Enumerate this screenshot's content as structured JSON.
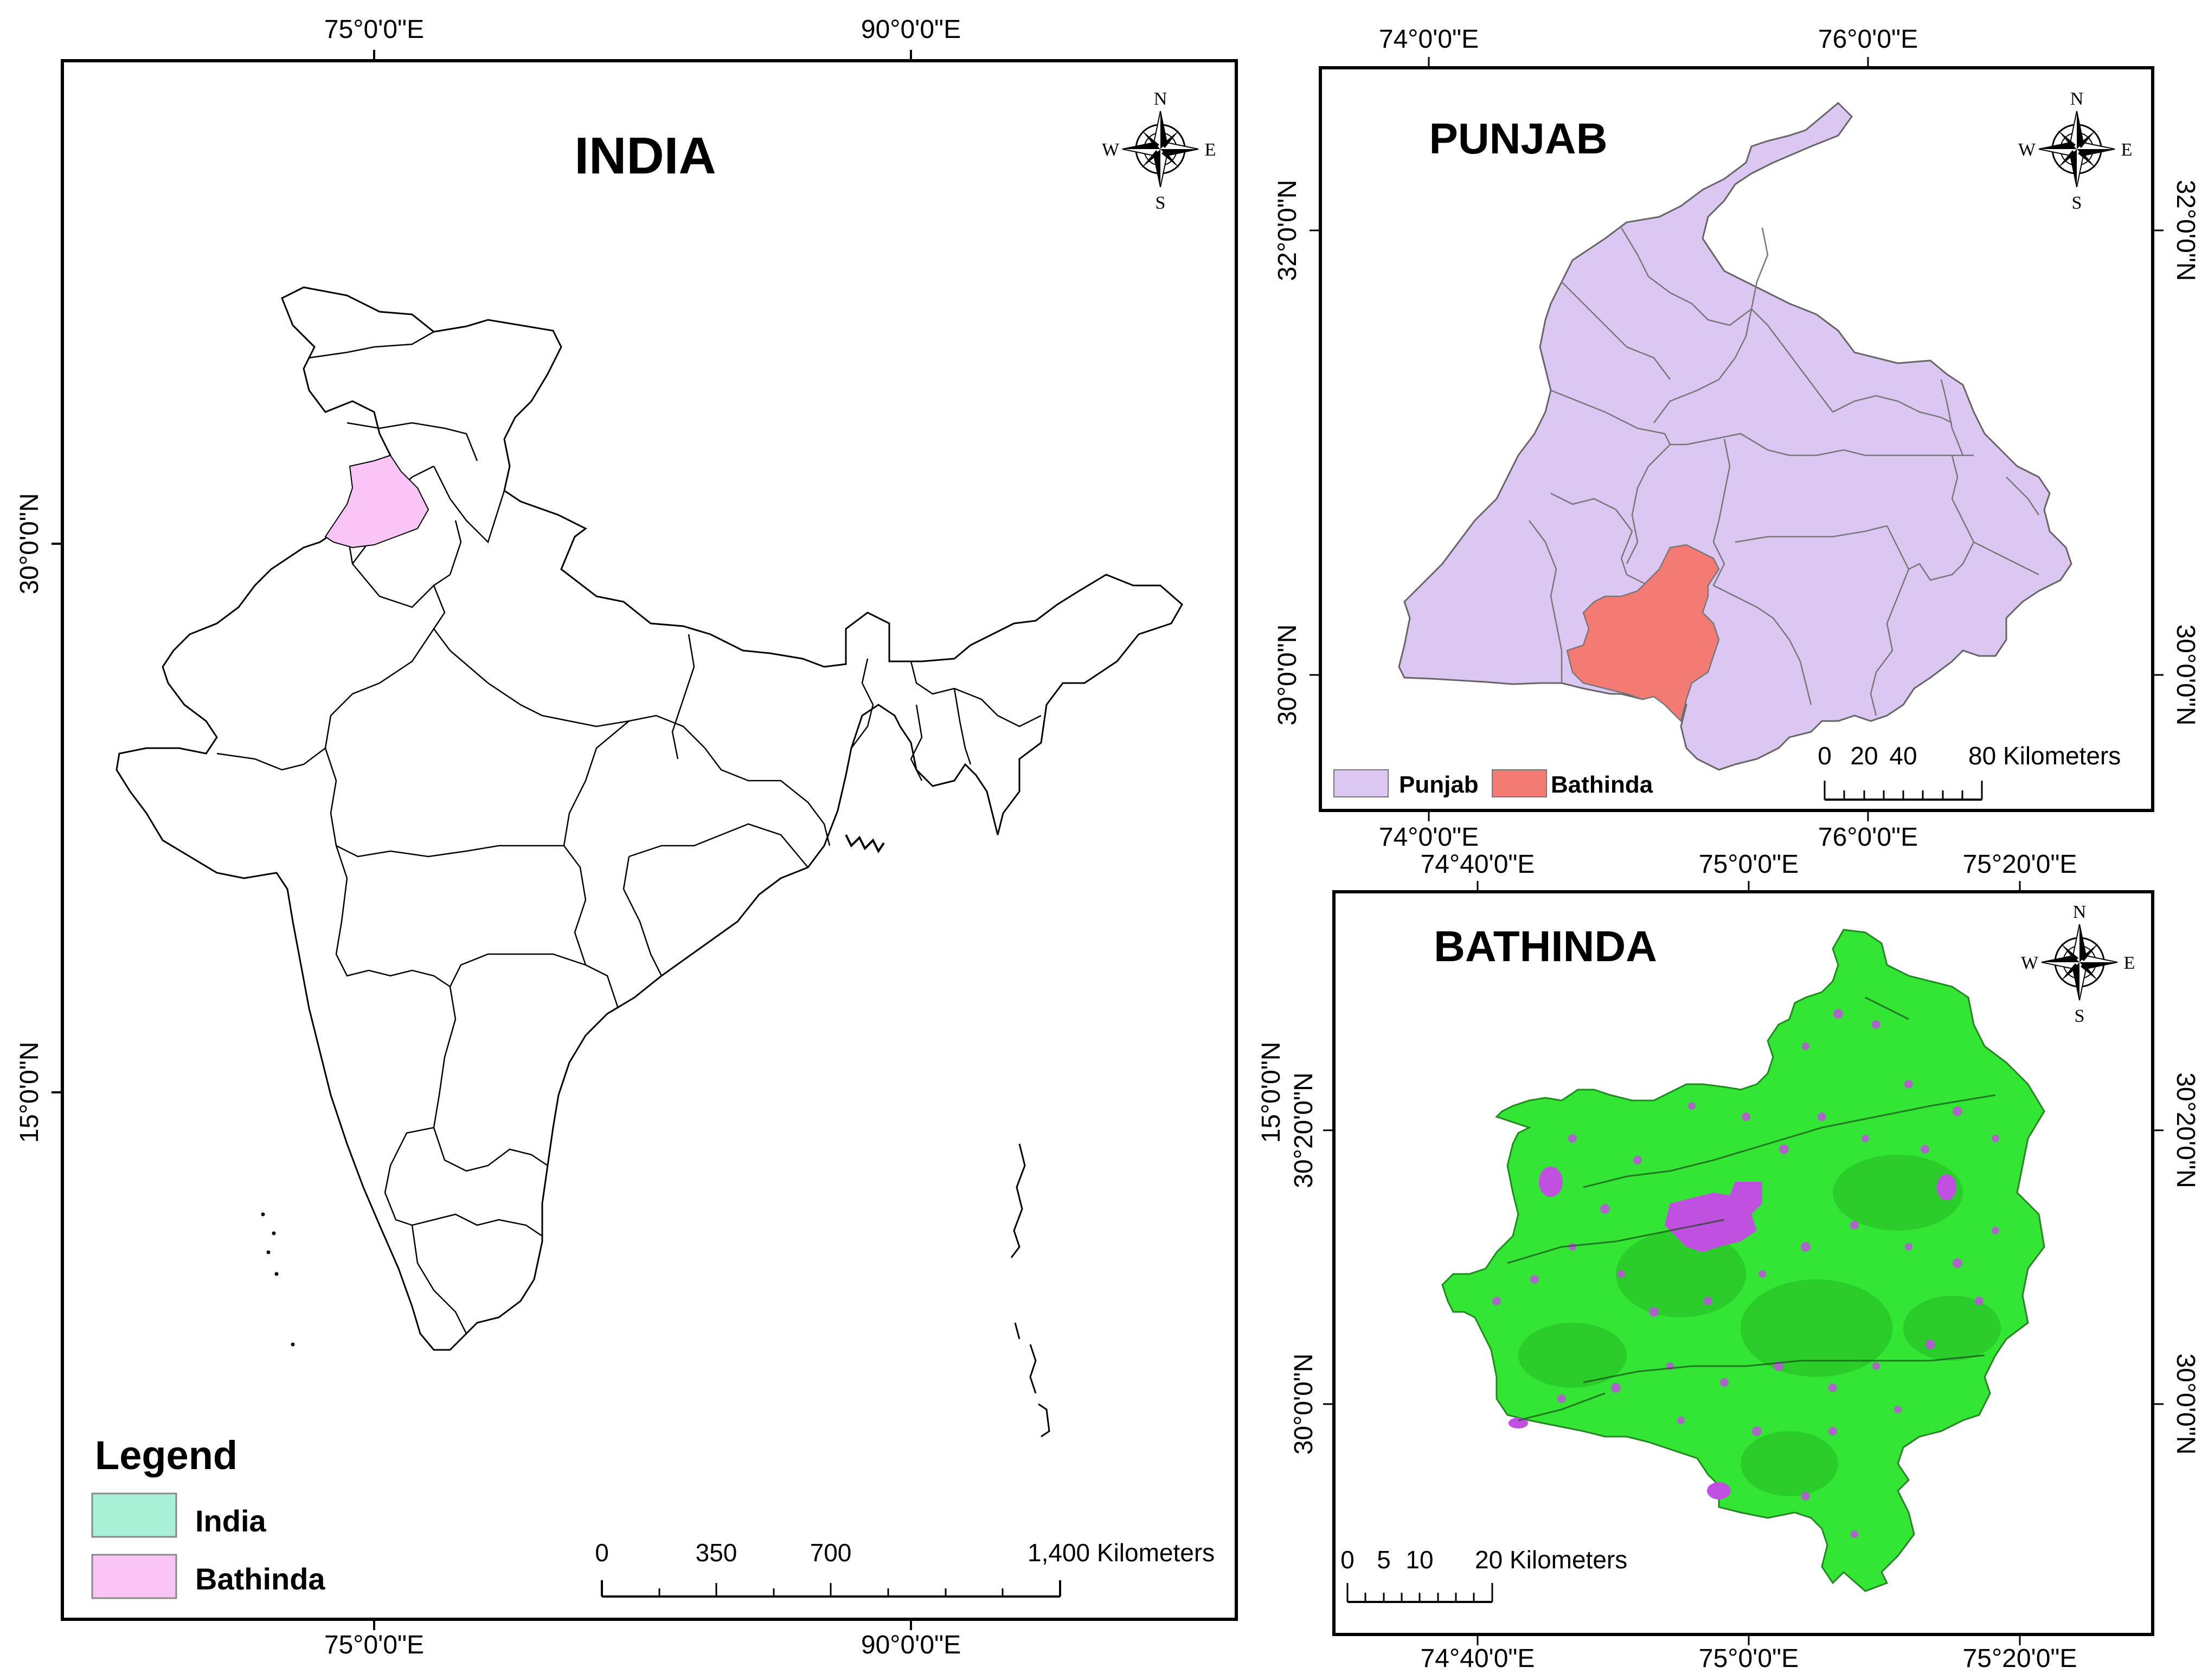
{
  "india_panel": {
    "title": "INDIA",
    "lon_labels": [
      "75°0'0\"E",
      "90°0'0\"E"
    ],
    "lat_labels": [
      "30°0'0\"N",
      "15°0'0\"N"
    ],
    "legend": {
      "heading": "Legend",
      "items": [
        {
          "label": "India",
          "color": "#a8f0d6"
        },
        {
          "label": "Bathinda",
          "color": "#f9c4f6"
        }
      ]
    },
    "scale": {
      "ticks": [
        "0",
        "350",
        "700",
        "1,400 Kilometers"
      ]
    }
  },
  "punjab_panel": {
    "title": "PUNJAB",
    "lon_labels": [
      "74°0'0\"E",
      "76°0'0\"E"
    ],
    "lat_labels": [
      "32°0'0\"N",
      "30°0'0\"N"
    ],
    "legend": {
      "items": [
        {
          "label": "Punjab",
          "color": "#dcc6f2"
        },
        {
          "label": "Bathinda",
          "color": "#f47b74"
        }
      ]
    },
    "scale": {
      "ticks": [
        "0",
        "20",
        "40",
        "80 Kilometers"
      ]
    }
  },
  "bathinda_panel": {
    "title": "BATHINDA",
    "lon_labels": [
      "74°40'0\"E",
      "75°0'0\"E",
      "75°20'0\"E"
    ],
    "lat_labels": [
      "30°20'0\"N",
      "30°0'0\"N"
    ],
    "lat_labels_left_extra": [
      "15°0'0\"N"
    ],
    "scale": {
      "ticks": [
        "0",
        "5",
        "10",
        "20 Kilometers"
      ]
    },
    "colors": {
      "vegetation": "#33e633",
      "urban": "#c050e0"
    }
  },
  "compass": {
    "n": "N",
    "s": "S",
    "e": "E",
    "w": "W"
  }
}
